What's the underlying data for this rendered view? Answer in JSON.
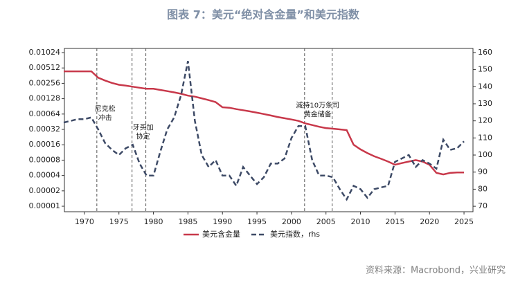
{
  "chart_data": {
    "type": "line",
    "title": "图表 7：美元“绝对含金量”和美元指数",
    "source": "资料来源：Macrobond，兴业研究",
    "x": [
      1967,
      1968,
      1969,
      1970,
      1971,
      1972,
      1973,
      1974,
      1975,
      1976,
      1977,
      1978,
      1979,
      1980,
      1981,
      1982,
      1983,
      1984,
      1985,
      1986,
      1987,
      1988,
      1989,
      1990,
      1991,
      1992,
      1993,
      1994,
      1995,
      1996,
      1997,
      1998,
      1999,
      2000,
      2001,
      2002,
      2003,
      2004,
      2005,
      2006,
      2007,
      2008,
      2009,
      2010,
      2011,
      2012,
      2013,
      2014,
      2015,
      2016,
      2017,
      2018,
      2019,
      2020,
      2021,
      2022,
      2023,
      2024,
      2025
    ],
    "series": [
      {
        "name": "美元含金量",
        "color": "#c8384a",
        "values": [
          0.0044,
          0.0044,
          0.0044,
          0.0044,
          0.0044,
          0.0033,
          0.0029,
          0.0026,
          0.0024,
          0.0023,
          0.0022,
          0.0021,
          0.002,
          0.002,
          0.0019,
          0.0018,
          0.0017,
          0.0016,
          0.00147,
          0.0014,
          0.0013,
          0.0012,
          0.0011,
          0.00087,
          0.00085,
          0.0008,
          0.00076,
          0.00072,
          0.00068,
          0.00064,
          0.0006,
          0.00056,
          0.00053,
          0.0005,
          0.00047,
          0.00042,
          0.00039,
          0.00036,
          0.00034,
          0.00033,
          0.00032,
          0.00031,
          0.00016,
          0.00013,
          0.00011,
          9.5e-05,
          8.5e-05,
          7.5e-05,
          6.5e-05,
          7e-05,
          7.5e-05,
          8e-05,
          7.5e-05,
          6.5e-05,
          4.5e-05,
          4.2e-05,
          4.5e-05,
          4.6e-05,
          4.6e-05
        ]
      },
      {
        "name": "美元指数，rhs",
        "color": "#3d4a66",
        "axis": "y2",
        "values": [
          119,
          120,
          121,
          121,
          122,
          115,
          107,
          103,
          100,
          104,
          106,
          95,
          88,
          88,
          102,
          115,
          122,
          135,
          155,
          120,
          100,
          93,
          97,
          88,
          88,
          82,
          93,
          88,
          83,
          87,
          95,
          95,
          98,
          110,
          117,
          117,
          97,
          88,
          88,
          87,
          80,
          74,
          82,
          80,
          75,
          80,
          81,
          82,
          96,
          98,
          100,
          93,
          97,
          95,
          92,
          109,
          103,
          104,
          108
        ]
      }
    ],
    "xlim": [
      1967.1,
      2026.3
    ],
    "xticks": [
      1970,
      1975,
      1980,
      1985,
      1990,
      1995,
      2000,
      2005,
      2010,
      2015,
      2020,
      2025
    ],
    "ylim": [
      7.8e-06,
      0.01235
    ],
    "log_y": true,
    "yticks": [
      1e-05,
      2e-05,
      4e-05,
      8e-05,
      0.00016,
      0.00032,
      0.00064,
      0.00128,
      0.00256,
      0.00512,
      0.01024
    ],
    "y2lim": [
      66.8,
      162.4
    ],
    "y2ticks": [
      70,
      80,
      90,
      100,
      110,
      120,
      130,
      140,
      150,
      160
    ],
    "event_lines": [
      1971.8,
      1976.9,
      1978.9,
      2001.9,
      2005.9
    ],
    "annotations": [
      {
        "x": 1973,
        "y": 127,
        "lines": [
          "尼克松",
          "冲击"
        ]
      },
      {
        "x": 1978.5,
        "y": 116,
        "lines": [
          "牙买加",
          "协定"
        ]
      },
      {
        "x": 2003.8,
        "y": 129,
        "lines": [
          "減持10万条司",
          "黄金储备"
        ]
      }
    ]
  }
}
